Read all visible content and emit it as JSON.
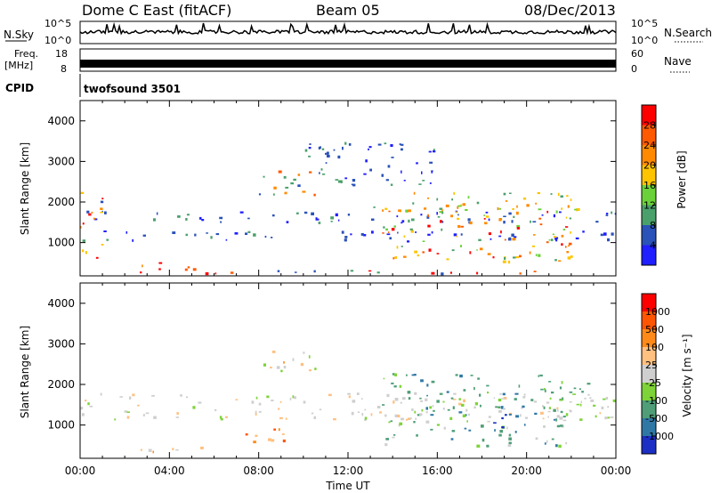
{
  "header": {
    "radar": "Dome C East (fitACF)",
    "beam": "Beam 05",
    "date": "08/Dec/2013"
  },
  "top_panel": {
    "left_label": "N.Sky",
    "right_label": "N.Search",
    "left_ticks": [
      "10^5",
      "10^0"
    ],
    "right_ticks": [
      "10^5",
      "10^0"
    ]
  },
  "freq_panel": {
    "label_line1": "Freq.",
    "label_line2": "[MHz]",
    "right_label": "Nave",
    "left_ticks": [
      "18",
      "8"
    ],
    "right_ticks": [
      "60",
      "0"
    ]
  },
  "cpid": {
    "label": "CPID",
    "value": "twofsound 3501"
  },
  "chart_data": [
    {
      "type": "heatmap",
      "panel": "power",
      "ylabel": "Slant Range [km]",
      "yticks": [
        1000,
        2000,
        3000,
        4000
      ],
      "ylim": [
        180,
        4500
      ],
      "xlim_hours": [
        0,
        24
      ],
      "colorbar": {
        "label": "Power [dB]",
        "ticks": [
          "4",
          "8",
          "12",
          "16",
          "20",
          "24",
          "28"
        ],
        "colors": [
          "#1f1fff",
          "#2a52b8",
          "#4aa06a",
          "#6bd13a",
          "#ffc400",
          "#ff8a00",
          "#ff5a00",
          "#ff0000"
        ]
      }
    },
    {
      "type": "heatmap",
      "panel": "velocity",
      "ylabel": "Slant Range [km]",
      "yticks": [
        1000,
        2000,
        3000,
        4000
      ],
      "ylim": [
        180,
        4500
      ],
      "xlim_hours": [
        0,
        24
      ],
      "xlabel": "Time UT",
      "xticks": [
        "00:00",
        "04:00",
        "08:00",
        "12:00",
        "16:00",
        "20:00",
        "00:00"
      ],
      "colorbar": {
        "label": "Velocity [m s⁻¹]",
        "ticks": [
          "1000",
          "500",
          "100",
          "25",
          "-25",
          "-100",
          "-500",
          "-1000"
        ],
        "colors": [
          "#1c2fc4",
          "#2f78a6",
          "#4f9e78",
          "#7ed338",
          "#cfcfcf",
          "#ffc080",
          "#ff8a1a",
          "#ff5500",
          "#ff0000"
        ]
      }
    }
  ]
}
